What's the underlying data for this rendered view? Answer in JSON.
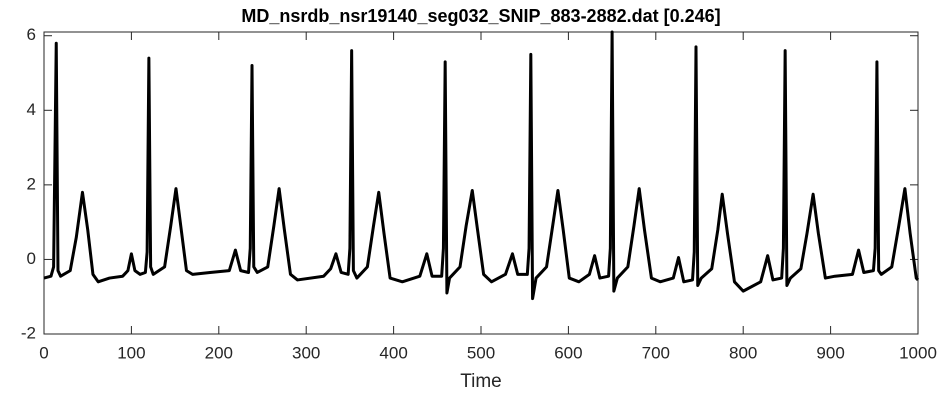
{
  "chart_data": {
    "type": "line",
    "title": "MD_nsrdb_nsr19140_seg032_SNIP_883-2882.dat [0.246]",
    "x_label": "Time",
    "xlim": [
      0,
      1000
    ],
    "xticks": [
      0,
      100,
      200,
      300,
      400,
      500,
      600,
      700,
      800,
      900,
      1000
    ],
    "ylim": [
      -2,
      6.1
    ],
    "yticks": [
      -2,
      0,
      2,
      4,
      6
    ],
    "grid": false,
    "series": [
      {
        "color": "#000000",
        "x": [
          0,
          8,
          11,
          14,
          16,
          19,
          30,
          37,
          44,
          50,
          56,
          62,
          75,
          90,
          96,
          100,
          104,
          110,
          116,
          118,
          120,
          122,
          125,
          138,
          145,
          151,
          157,
          163,
          170,
          190,
          212,
          219,
          225,
          234,
          236,
          238,
          240,
          244,
          256,
          263,
          269,
          275,
          282,
          290,
          320,
          328,
          334,
          340,
          348,
          350,
          352,
          354,
          358,
          370,
          377,
          383,
          389,
          396,
          410,
          430,
          438,
          444,
          455,
          457,
          459,
          461,
          464,
          476,
          483,
          490,
          496,
          503,
          512,
          528,
          536,
          542,
          553,
          555,
          557,
          559,
          563,
          575,
          582,
          588,
          594,
          601,
          612,
          624,
          630,
          636,
          646,
          648,
          650,
          652,
          656,
          668,
          675,
          681,
          687,
          695,
          705,
          720,
          726,
          732,
          742,
          744,
          746,
          748,
          752,
          764,
          771,
          776,
          782,
          790,
          800,
          820,
          828,
          834,
          844,
          846,
          848,
          850,
          854,
          866,
          873,
          880,
          886,
          894,
          905,
          925,
          932,
          938,
          949,
          951,
          953,
          955,
          958,
          970,
          978,
          985,
          991,
          998,
          1000
        ],
        "values": [
          -0.5,
          -0.45,
          -0.2,
          5.8,
          -0.3,
          -0.45,
          -0.3,
          0.6,
          1.8,
          0.8,
          -0.4,
          -0.6,
          -0.5,
          -0.45,
          -0.3,
          0.15,
          -0.3,
          -0.4,
          -0.35,
          0.2,
          5.4,
          -0.2,
          -0.4,
          -0.2,
          0.9,
          1.9,
          0.8,
          -0.3,
          -0.4,
          -0.35,
          -0.3,
          0.25,
          -0.3,
          -0.35,
          0.3,
          5.2,
          -0.2,
          -0.35,
          -0.2,
          0.9,
          1.9,
          0.8,
          -0.4,
          -0.55,
          -0.45,
          -0.25,
          0.15,
          -0.35,
          -0.4,
          0.3,
          5.6,
          -0.3,
          -0.5,
          -0.2,
          0.9,
          1.8,
          0.7,
          -0.5,
          -0.6,
          -0.45,
          0.15,
          -0.45,
          -0.45,
          0.3,
          5.3,
          -0.9,
          -0.5,
          -0.2,
          0.9,
          1.85,
          0.8,
          -0.4,
          -0.6,
          -0.4,
          0.15,
          -0.4,
          -0.4,
          0.3,
          5.5,
          -1.05,
          -0.5,
          -0.2,
          0.9,
          1.85,
          0.8,
          -0.5,
          -0.6,
          -0.4,
          0.1,
          -0.5,
          -0.45,
          0.3,
          6.1,
          -0.85,
          -0.5,
          -0.2,
          0.9,
          1.9,
          0.8,
          -0.5,
          -0.6,
          -0.5,
          0.05,
          -0.6,
          -0.55,
          0.2,
          5.7,
          -0.7,
          -0.5,
          -0.25,
          0.8,
          1.75,
          0.7,
          -0.6,
          -0.85,
          -0.6,
          0.1,
          -0.55,
          -0.5,
          0.3,
          5.6,
          -0.7,
          -0.5,
          -0.25,
          0.7,
          1.75,
          0.7,
          -0.5,
          -0.45,
          -0.4,
          0.25,
          -0.35,
          -0.3,
          0.3,
          5.3,
          -0.3,
          -0.4,
          -0.2,
          0.9,
          1.9,
          0.7,
          -0.5,
          -0.55
        ]
      }
    ]
  }
}
